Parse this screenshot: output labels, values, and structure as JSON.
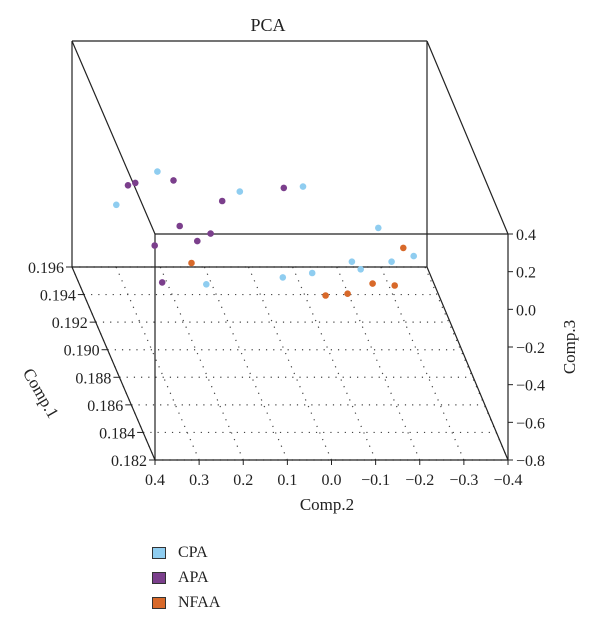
{
  "chart_data": {
    "type": "scatter",
    "title": "PCA",
    "axes": {
      "x": {
        "label": "Comp.2",
        "ticks": [
          "0.4",
          "0.3",
          "0.2",
          "0.1",
          "0.0",
          "−0.1",
          "−0.2",
          "−0.3",
          "−0.4"
        ],
        "range": [
          0.4,
          -0.4
        ]
      },
      "y": {
        "label": "Comp.1",
        "ticks": [
          "0.182",
          "0.184",
          "0.186",
          "0.188",
          "0.190",
          "0.192",
          "0.194",
          "0.196"
        ],
        "range": [
          0.182,
          0.196
        ]
      },
      "z": {
        "label": "Comp.3",
        "ticks": [
          "−0.8",
          "−0.6",
          "−0.4",
          "−0.2",
          "0.0",
          "0.2",
          "0.4"
        ],
        "range": [
          -0.8,
          0.4
        ]
      }
    },
    "grid": true,
    "legend_position": "bottom-left",
    "series": [
      {
        "name": "CPA",
        "color": "#8fcdf0",
        "points": [
          {
            "comp2": 0.34,
            "comp1": 0.193,
            "comp3": -0.25
          },
          {
            "comp2": 0.22,
            "comp1": 0.195,
            "comp3": -0.22
          },
          {
            "comp2": 0.06,
            "comp1": 0.193,
            "comp3": -0.18
          },
          {
            "comp2": 0.07,
            "comp1": 0.185,
            "comp3": -0.05
          },
          {
            "comp2": -0.01,
            "comp1": 0.186,
            "comp3": -0.1
          },
          {
            "comp2": -0.12,
            "comp1": 0.186,
            "comp3": -0.08
          },
          {
            "comp2": -0.19,
            "comp1": 0.186,
            "comp3": -0.04
          },
          {
            "comp2": -0.24,
            "comp1": 0.186,
            "comp3": -0.01
          },
          {
            "comp2": -0.2,
            "comp1": 0.189,
            "comp3": -0.08
          },
          {
            "comp2": 0.23,
            "comp1": 0.186,
            "comp3": -0.16
          },
          {
            "comp2": -0.1,
            "comp1": 0.186,
            "comp3": -0.04
          },
          {
            "comp2": -0.11,
            "comp1": 0.195,
            "comp3": -0.3
          }
        ]
      },
      {
        "name": "APA",
        "color": "#7b3f8c",
        "points": [
          {
            "comp2": 0.25,
            "comp1": 0.189,
            "comp3": -0.07
          },
          {
            "comp2": 0.18,
            "comp1": 0.189,
            "comp3": -0.11
          },
          {
            "comp2": 0.32,
            "comp1": 0.188,
            "comp3": -0.1
          },
          {
            "comp2": 0.33,
            "comp1": 0.186,
            "comp3": -0.15
          },
          {
            "comp2": 0.3,
            "comp1": 0.194,
            "comp3": -0.22
          },
          {
            "comp2": 0.27,
            "comp1": 0.195,
            "comp3": -0.28
          },
          {
            "comp2": 0.21,
            "comp1": 0.189,
            "comp3": -0.15
          },
          {
            "comp2": 0.1,
            "comp1": 0.193,
            "comp3": -0.23
          },
          {
            "comp2": 0.17,
            "comp1": 0.196,
            "comp3": -0.34
          },
          {
            "comp2": -0.08,
            "comp1": 0.196,
            "comp3": -0.38
          }
        ]
      },
      {
        "name": "NFAA",
        "color": "#d8692a",
        "points": [
          {
            "comp2": 0.25,
            "comp1": 0.187,
            "comp3": -0.12
          },
          {
            "comp2": 0.0,
            "comp1": 0.183,
            "comp3": 0.0
          },
          {
            "comp2": -0.05,
            "comp1": 0.183,
            "comp3": 0.01
          },
          {
            "comp2": -0.12,
            "comp1": 0.184,
            "comp3": -0.01
          },
          {
            "comp2": -0.17,
            "comp1": 0.184,
            "comp3": -0.02
          },
          {
            "comp2": -0.23,
            "comp1": 0.187,
            "comp3": -0.04
          }
        ]
      }
    ]
  }
}
